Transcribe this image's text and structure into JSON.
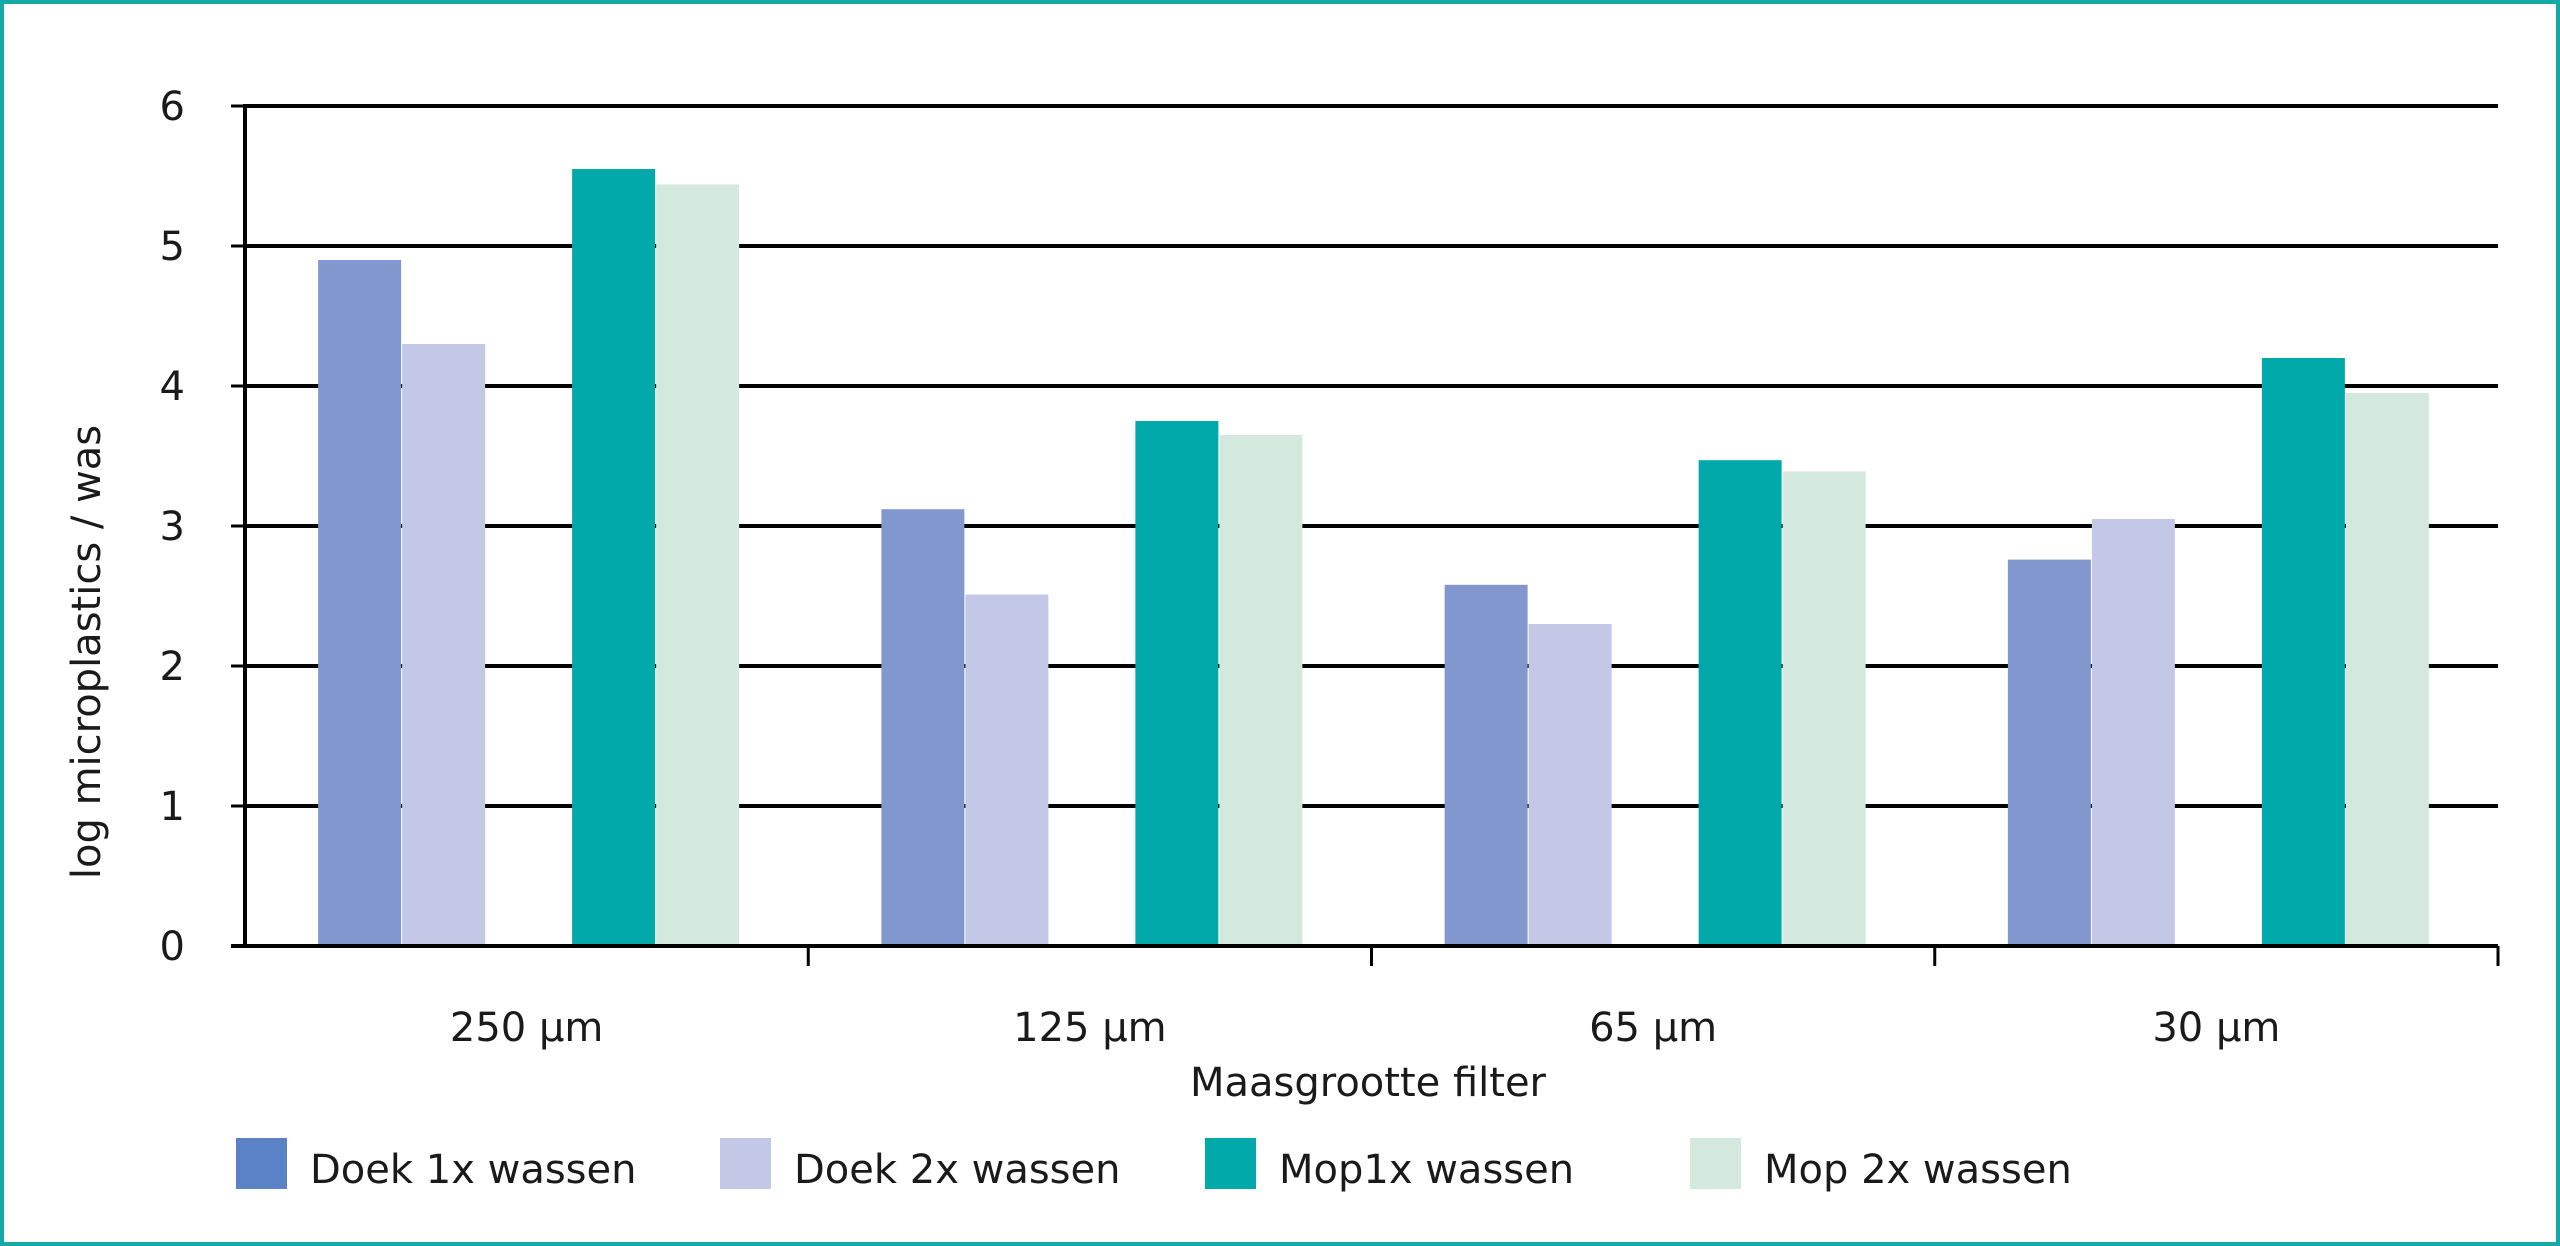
{
  "chart_data": {
    "type": "bar",
    "title": "",
    "xlabel": "Maasgrootte filter",
    "ylabel": "log microplastics / was",
    "categories": [
      "250 µm",
      "125 µm",
      "65 µm",
      "30 µm"
    ],
    "ylim": [
      0,
      6
    ],
    "yticks": [
      0,
      1,
      2,
      3,
      4,
      5,
      6
    ],
    "grid": true,
    "legend_position": "bottom",
    "series": [
      {
        "name": "Doek 1x wassen",
        "color": "#8197cd",
        "legend_color": "#5b82c6",
        "values": [
          4.9,
          3.12,
          2.58,
          2.76
        ]
      },
      {
        "name": "Doek 2x wassen",
        "color": "#c2c8e6",
        "legend_color": "#c2c8e6",
        "values": [
          4.3,
          2.51,
          2.3,
          3.05
        ]
      },
      {
        "name": "Mop1x wassen",
        "color": "#01a9aa",
        "legend_color": "#01a9aa",
        "values": [
          5.55,
          3.75,
          3.47,
          4.2
        ]
      },
      {
        "name": "Mop 2x wassen",
        "color": "#d3e9dd",
        "legend_color": "#d3e9dd",
        "values": [
          5.44,
          3.65,
          3.39,
          3.95
        ]
      }
    ]
  }
}
